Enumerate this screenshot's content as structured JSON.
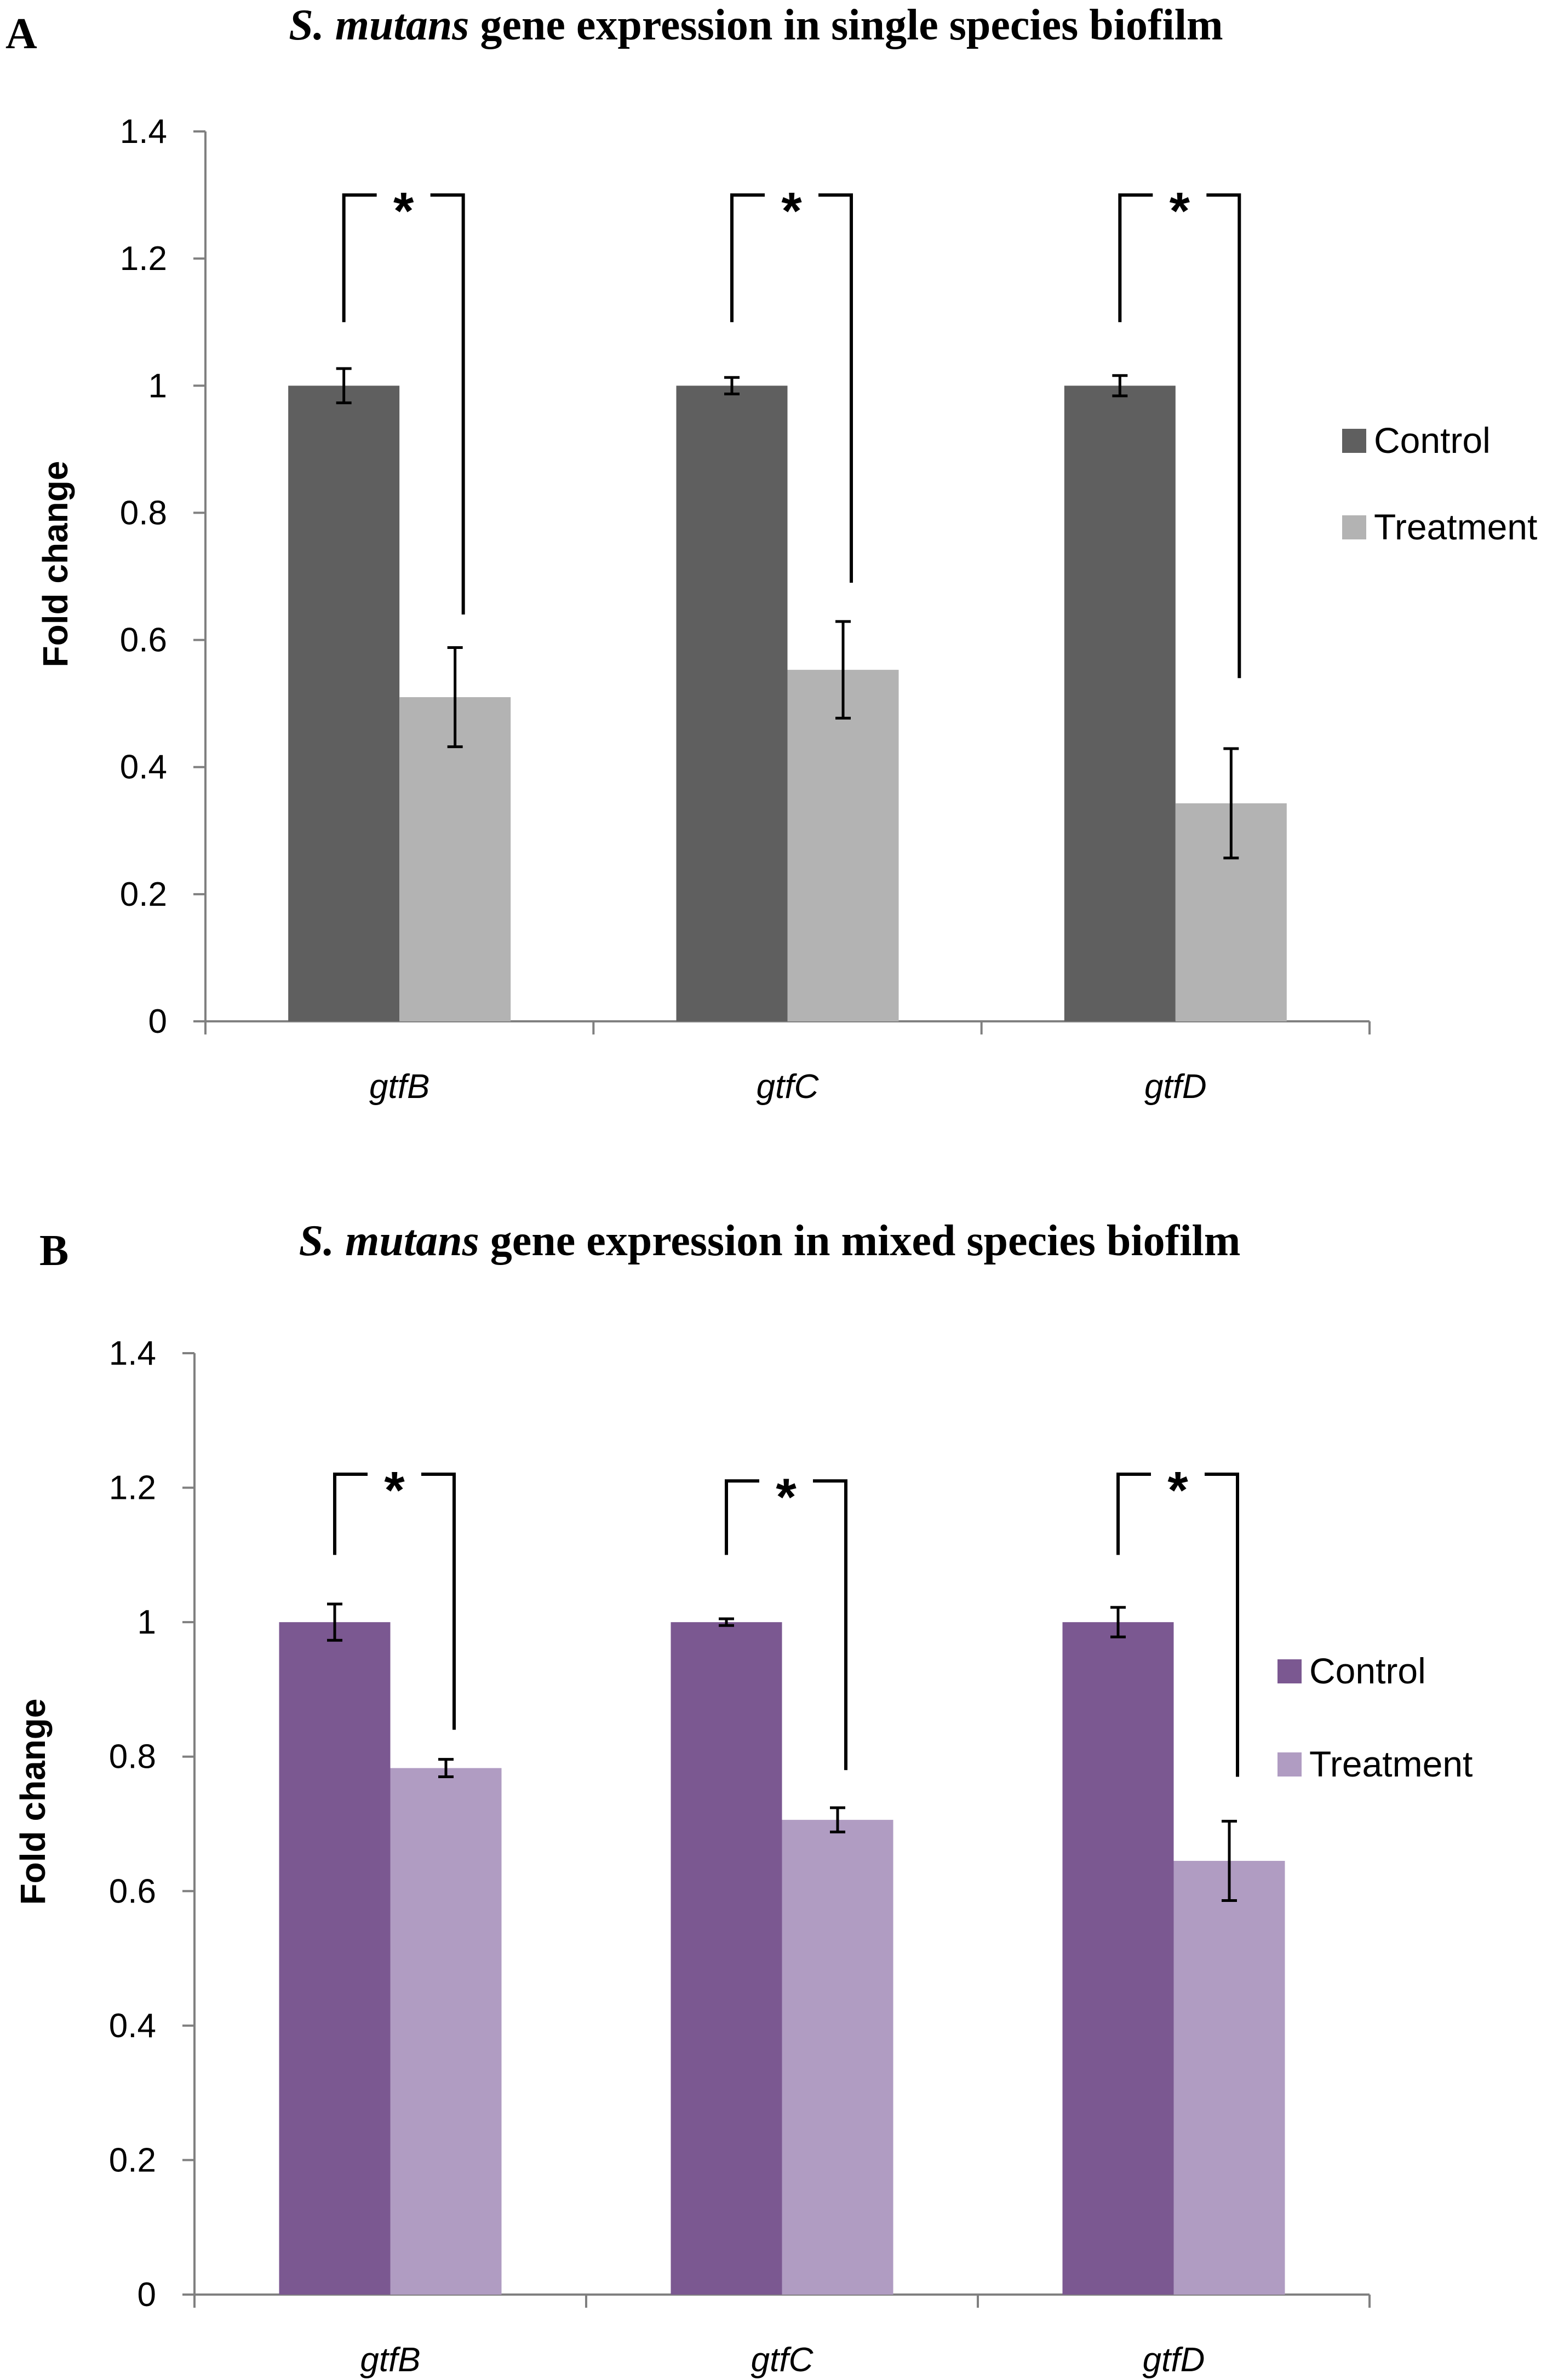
{
  "colors": {
    "background": "#ffffff",
    "axis": "#808080",
    "text": "#000000"
  },
  "chart_data": [
    {
      "type": "bar",
      "panel_label": "A",
      "title_italic": "S. mutans",
      "title_rest": " gene expression in single species biofilm",
      "xlabel": "",
      "ylabel": "Fold change",
      "ylim": [
        0,
        1.4
      ],
      "yticks": [
        0,
        0.2,
        0.4,
        0.6,
        0.8,
        1,
        1.2,
        1.4
      ],
      "categories": [
        "gtfB",
        "gtfC",
        "gtfD"
      ],
      "legend_position": "right",
      "series": [
        {
          "name": "Control",
          "color": "#5f5f5f",
          "values": [
            1.0,
            1.0,
            1.0
          ],
          "errors": [
            0.027,
            0.013,
            0.016
          ]
        },
        {
          "name": "Treatment",
          "color": "#b3b3b3",
          "values": [
            0.51,
            0.553,
            0.343
          ],
          "errors": [
            0.078,
            0.076,
            0.086
          ]
        }
      ],
      "significance": [
        {
          "category": "gtfB",
          "label": "*",
          "bracket_y": 1.3,
          "left_end": 1.1,
          "right_end": 0.64
        },
        {
          "category": "gtfC",
          "label": "*",
          "bracket_y": 1.3,
          "left_end": 1.1,
          "right_end": 0.69
        },
        {
          "category": "gtfD",
          "label": "*",
          "bracket_y": 1.3,
          "left_end": 1.1,
          "right_end": 0.54
        }
      ]
    },
    {
      "type": "bar",
      "panel_label": "B",
      "title_italic": "S. mutans",
      "title_rest": " gene expression in mixed species biofilm",
      "xlabel": "",
      "ylabel": "Fold change",
      "ylim": [
        0,
        1.4
      ],
      "yticks": [
        0,
        0.2,
        0.4,
        0.6,
        0.8,
        1,
        1.2,
        1.4
      ],
      "categories": [
        "gtfB",
        "gtfC",
        "gtfD"
      ],
      "legend_position": "right",
      "series": [
        {
          "name": "Control",
          "color": "#7b5891",
          "values": [
            1.0,
            1.0,
            1.0
          ],
          "errors": [
            0.027,
            0.005,
            0.022
          ]
        },
        {
          "name": "Treatment",
          "color": "#b09cc2",
          "values": [
            0.783,
            0.706,
            0.645
          ],
          "errors": [
            0.013,
            0.018,
            0.059
          ]
        }
      ],
      "significance": [
        {
          "category": "gtfB",
          "label": "*",
          "bracket_y": 1.22,
          "left_end": 1.1,
          "right_end": 0.84
        },
        {
          "category": "gtfC",
          "label": "*",
          "bracket_y": 1.21,
          "left_end": 1.1,
          "right_end": 0.78
        },
        {
          "category": "gtfD",
          "label": "*",
          "bracket_y": 1.22,
          "left_end": 1.1,
          "right_end": 0.77
        }
      ]
    }
  ]
}
